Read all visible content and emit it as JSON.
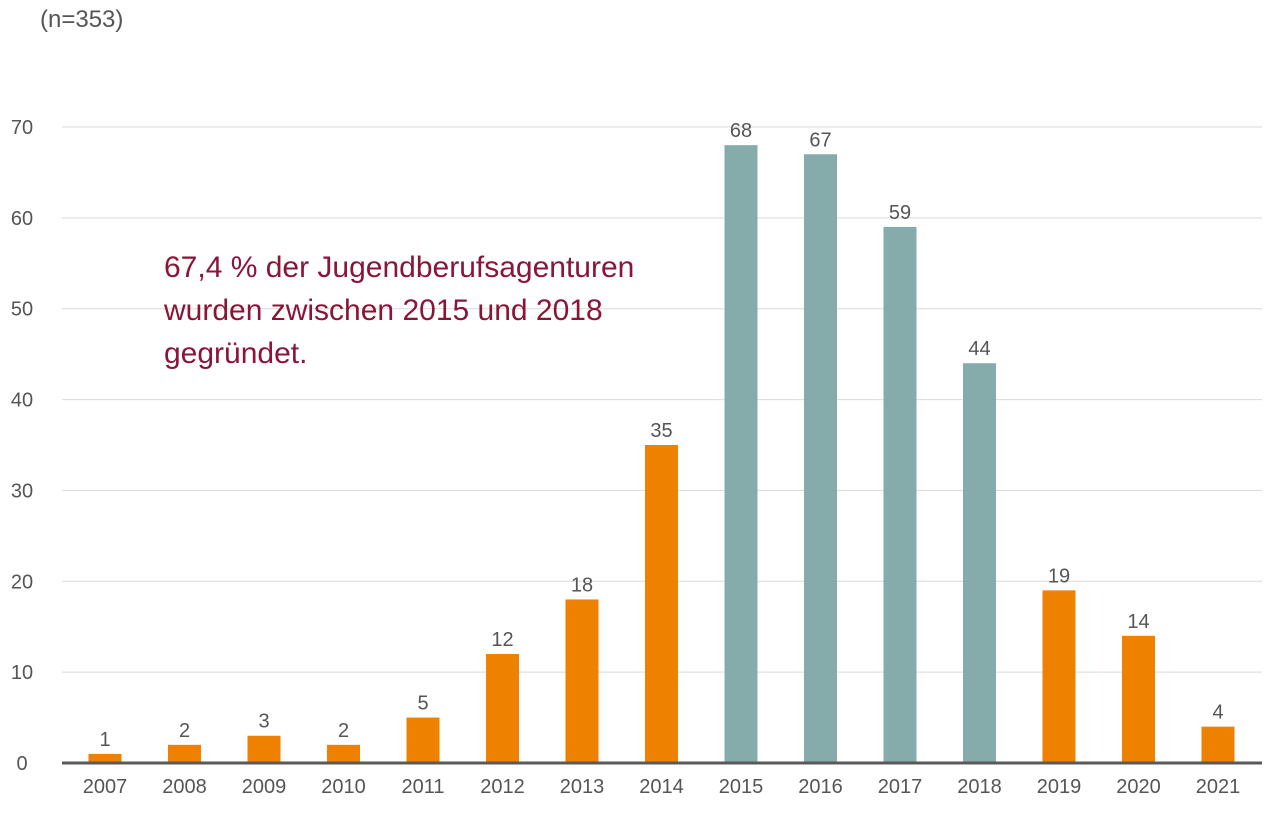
{
  "chart_data": {
    "type": "bar",
    "subtitle": "(n=353)",
    "categories": [
      "2007",
      "2008",
      "2009",
      "2010",
      "2011",
      "2012",
      "2013",
      "2014",
      "2015",
      "2016",
      "2017",
      "2018",
      "2019",
      "2020",
      "2021"
    ],
    "values": [
      1,
      2,
      3,
      2,
      5,
      12,
      18,
      35,
      68,
      67,
      59,
      44,
      19,
      14,
      4
    ],
    "ylim": [
      0,
      70
    ],
    "yticks": [
      0,
      10,
      20,
      30,
      40,
      50,
      60,
      70
    ],
    "grid": true,
    "colors": {
      "default": "#ee8100",
      "highlight": "#85abab",
      "annotation": "#8a1538"
    },
    "highlight_categories": [
      "2015",
      "2016",
      "2017",
      "2018"
    ],
    "annotation": [
      "67,4 % der Jugendberufsagenturen",
      "wurden zwischen 2015 und 2018",
      "gegründet."
    ]
  }
}
